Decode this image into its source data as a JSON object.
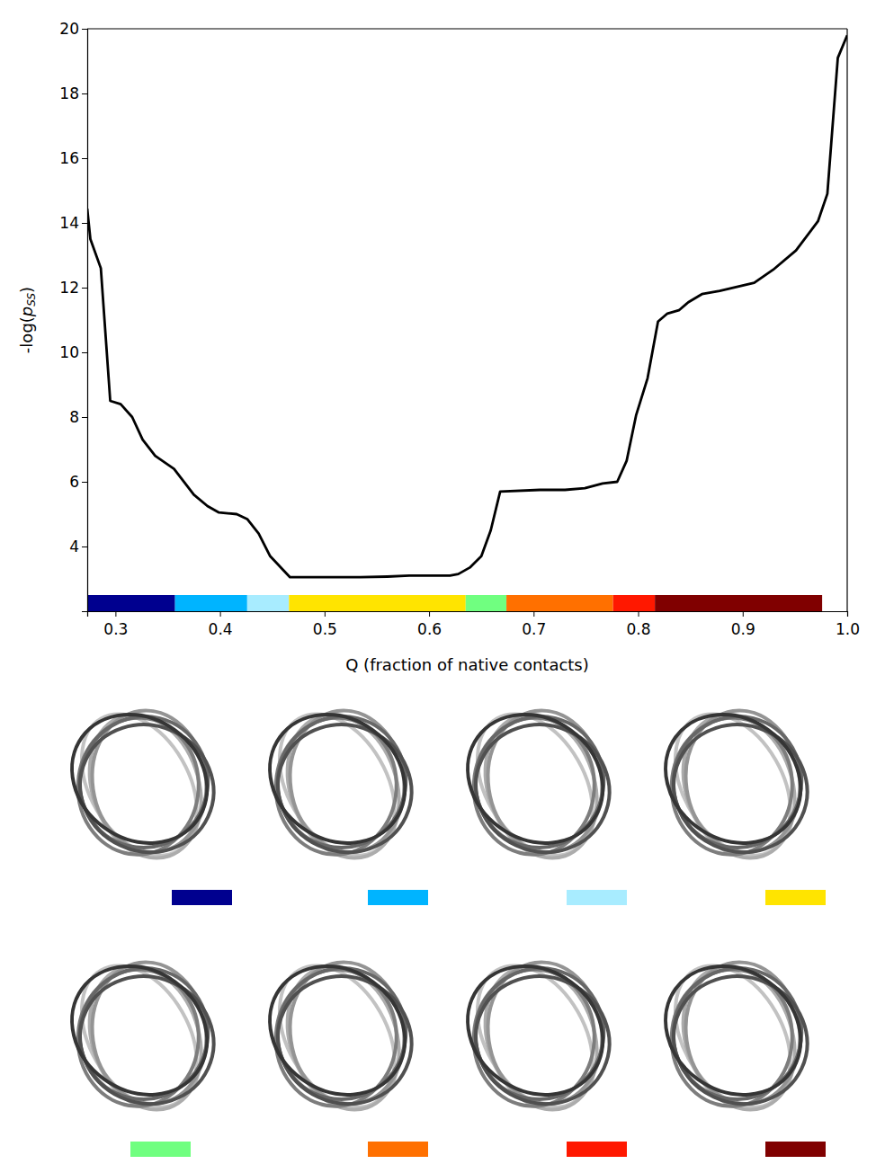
{
  "chart_data": {
    "type": "line",
    "xlabel": "Q (fraction of native contacts)",
    "ylabel_parts": [
      "-log(",
      "p",
      "SS",
      ")"
    ],
    "color": "#000000",
    "x": [
      0.273,
      0.276,
      0.286,
      0.295,
      0.305,
      0.316,
      0.326,
      0.338,
      0.356,
      0.375,
      0.388,
      0.399,
      0.416,
      0.426,
      0.437,
      0.448,
      0.467,
      0.534,
      0.56,
      0.581,
      0.62,
      0.628,
      0.639,
      0.65,
      0.659,
      0.668,
      0.706,
      0.73,
      0.749,
      0.766,
      0.78,
      0.789,
      0.798,
      0.809,
      0.819,
      0.828,
      0.839,
      0.848,
      0.861,
      0.878,
      0.911,
      0.929,
      0.951,
      0.972,
      0.981,
      0.991,
      1.0
    ],
    "values": [
      14.44,
      13.5,
      12.6,
      8.5,
      8.4,
      8.0,
      7.3,
      6.8,
      6.4,
      5.6,
      5.25,
      5.05,
      5.0,
      4.85,
      4.4,
      3.7,
      3.05,
      3.05,
      3.07,
      3.1,
      3.1,
      3.15,
      3.35,
      3.7,
      4.5,
      5.7,
      5.75,
      5.75,
      5.8,
      5.95,
      6.0,
      6.65,
      8.05,
      9.2,
      10.95,
      11.2,
      11.3,
      11.55,
      11.8,
      11.9,
      12.15,
      12.55,
      13.15,
      14.05,
      14.9,
      19.1,
      19.8
    ],
    "xlim": [
      0.273,
      1.0
    ],
    "xticks": [
      0.3,
      0.4,
      0.5,
      0.6,
      0.7,
      0.8,
      0.9,
      {
        "value": 1.0,
        "label": "1.0"
      }
    ],
    "ylim": [
      2,
      20
    ],
    "yticks": [
      4,
      6,
      8,
      10,
      12,
      14,
      16,
      18,
      20
    ],
    "grid": false,
    "bands": [
      {
        "start": 0.273,
        "end": 0.357,
        "color": "#00008f"
      },
      {
        "start": 0.357,
        "end": 0.426,
        "color": "#00b4ff"
      },
      {
        "start": 0.426,
        "end": 0.466,
        "color": "#a8ecff"
      },
      {
        "start": 0.466,
        "end": 0.635,
        "color": "#ffe400"
      },
      {
        "start": 0.635,
        "end": 0.674,
        "color": "#70ff80"
      },
      {
        "start": 0.674,
        "end": 0.776,
        "color": "#ff7000"
      },
      {
        "start": 0.776,
        "end": 0.816,
        "color": "#ff1800"
      },
      {
        "start": 0.816,
        "end": 0.976,
        "color": "#800000"
      }
    ]
  }
}
